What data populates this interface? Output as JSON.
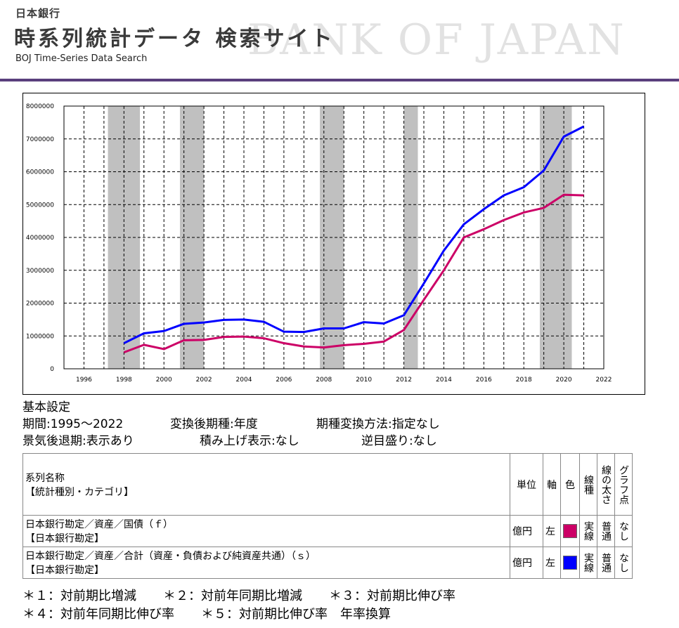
{
  "header": {
    "org": "日本銀行",
    "title": "時系列統計データ 検索サイト",
    "subtitle_en": "BOJ Time-Series Data Search",
    "watermark": "BANK OF JAPAN"
  },
  "chart_data": {
    "type": "line",
    "title": "",
    "xlabel": "",
    "ylabel": "",
    "x": [
      1998,
      1999,
      2000,
      2001,
      2002,
      2003,
      2004,
      2005,
      2006,
      2007,
      2008,
      2009,
      2010,
      2011,
      2012,
      2013,
      2014,
      2015,
      2016,
      2017,
      2018,
      2019,
      2020,
      2021
    ],
    "xlim": [
      1995,
      2022
    ],
    "ylim": [
      0,
      8000000
    ],
    "xticks": [
      "1996",
      "1998",
      "2000",
      "2002",
      "2004",
      "2006",
      "2008",
      "2010",
      "2012",
      "2014",
      "2016",
      "2018",
      "2020",
      "2022"
    ],
    "yticks": [
      "0",
      "1000000",
      "2000000",
      "3000000",
      "4000000",
      "5000000",
      "6000000",
      "7000000",
      "8000000"
    ],
    "grid": true,
    "recession_shading": [
      [
        1997.2,
        1998.8
      ],
      [
        2000.8,
        2002.0
      ],
      [
        2007.8,
        2009.0
      ],
      [
        2012.0,
        2012.7
      ],
      [
        2018.8,
        2020.4
      ]
    ],
    "series": [
      {
        "color": "#cc0066",
        "values": [
          500000,
          730000,
          600000,
          870000,
          880000,
          970000,
          980000,
          930000,
          780000,
          680000,
          650000,
          720000,
          760000,
          830000,
          1180000,
          2100000,
          3000000,
          4000000,
          4250000,
          4530000,
          4760000,
          4900000,
          5300000,
          5280000
        ]
      },
      {
        "color": "#0000ff",
        "values": [
          780000,
          1080000,
          1150000,
          1370000,
          1410000,
          1490000,
          1500000,
          1430000,
          1130000,
          1120000,
          1230000,
          1230000,
          1420000,
          1380000,
          1630000,
          2600000,
          3600000,
          4400000,
          4860000,
          5280000,
          5530000,
          6040000,
          7070000,
          7380000
        ]
      }
    ]
  },
  "settings": {
    "heading": "基本設定",
    "period": "期間:1995～2022",
    "conv_freq": "変換後期種:年度",
    "conv_method": "期種変換方法:指定なし",
    "recession": "景気後退期:表示あり",
    "stacked": "積み上げ表示:なし",
    "reverse": "逆目盛り:なし"
  },
  "table": {
    "headers": {
      "name_line1": "系列名称",
      "name_line2": "【統計種別・カテゴリ】",
      "unit": "単位",
      "axis": "軸",
      "color": "色",
      "line_type": "線種",
      "line_width": "線の太さ",
      "graph_points": "グラフ点"
    },
    "rows": [
      {
        "name_line1": "日本銀行勘定／資産／国債（ｆ）",
        "name_line2": "【日本銀行勘定】",
        "unit": "億円",
        "axis": "左",
        "color": "#cc0066",
        "line_type": "実線",
        "line_width": "普通",
        "points": "なし"
      },
      {
        "name_line1": "日本銀行勘定／資産／合計（資産・負債および純資産共通）（ｓ）",
        "name_line2": "【日本銀行勘定】",
        "unit": "億円",
        "axis": "左",
        "color": "#0000ff",
        "line_type": "実線",
        "line_width": "普通",
        "points": "なし"
      }
    ]
  },
  "notes": [
    "＊１：対前期比増減",
    "＊２：対前年同期比増減",
    "＊３：対前期比伸び率",
    "＊４：対前年同期比伸び率",
    "＊５：対前期比伸び率　年率換算"
  ]
}
